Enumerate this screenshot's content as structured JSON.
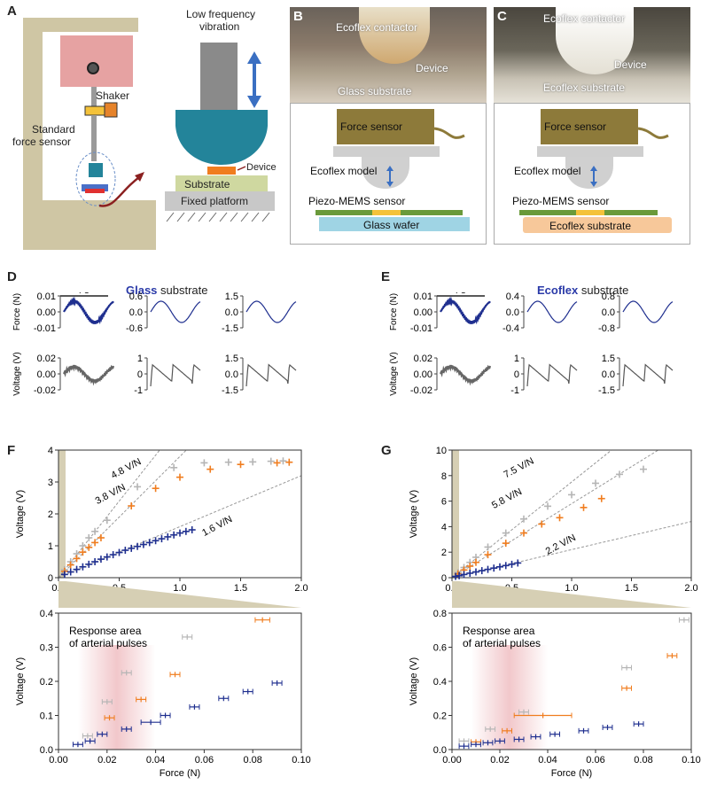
{
  "panel_labels": {
    "a": "A",
    "b": "B",
    "c": "C",
    "d": "D",
    "e": "E",
    "f": "F",
    "g": "G"
  },
  "panel_a": {
    "shaker": "Shaker",
    "standard_force_sensor_1": "Standard",
    "standard_force_sensor_2": "force sensor",
    "vibration_1": "Low frequency",
    "vibration_2": "vibration",
    "device": "Device",
    "substrate": "Substrate",
    "fixed_platform": "Fixed platform"
  },
  "panel_b": {
    "contactor": "Ecoflex contactor",
    "device": "Device",
    "substrate": "Glass substrate",
    "force_sensor": "Force sensor",
    "model": "Ecoflex model",
    "sensor": "Piezo-MEMS  sensor",
    "base": "Glass wafer"
  },
  "panel_c": {
    "contactor": "Ecoflex contactor",
    "device": "Device",
    "substrate": "Ecoflex substrate",
    "force_sensor": "Force sensor",
    "model": "Ecoflex model",
    "sensor": "Piezo-MEMS  sensor",
    "base": "Ecoflex substrate"
  },
  "panel_d": {
    "title_bold": "Glass",
    "title_rest": " substrate",
    "scale": "4 s",
    "force_label": "Force (N)",
    "voltage_label": "Voltage (V)",
    "force_ticks": [
      [
        "0.01",
        "0.00",
        "-0.01"
      ],
      [
        "0.6",
        "0.0",
        "-0.6"
      ],
      [
        "1.5",
        "0.0",
        "-1.5"
      ]
    ],
    "voltage_ticks": [
      [
        "0.02",
        "0.00",
        "-0.02"
      ],
      [
        "1",
        "0",
        "-1"
      ],
      [
        "1.5",
        "0.0",
        "-1.5"
      ]
    ]
  },
  "panel_e": {
    "title_bold": "Ecoflex",
    "title_rest": " substrate",
    "scale": "4 s",
    "force_label": "Force (N)",
    "voltage_label": "Voltage (V)",
    "force_ticks": [
      [
        "0.01",
        "0.00",
        "-0.01"
      ],
      [
        "0.4",
        "0.0",
        "-0.4"
      ],
      [
        "0.8",
        "0.0",
        "-0.8"
      ]
    ],
    "voltage_ticks": [
      [
        "0.02",
        "0.00",
        "-0.02"
      ],
      [
        "1",
        "0",
        "-1"
      ],
      [
        "1.5",
        "0.0",
        "-1.5"
      ]
    ]
  },
  "colors": {
    "navy": "#1f2f8f",
    "orange": "#f07d1f",
    "gray": "#b5b5b5",
    "tan": "#cfc6a4",
    "olive": "#7a6a2a",
    "teal": "#23849a",
    "pink": "#e79aa0"
  },
  "chart_data": [
    {
      "id": "F-top",
      "type": "scatter",
      "xlabel": "",
      "ylabel": "Voltage (V)",
      "xlim": [
        0,
        2.0
      ],
      "ylim": [
        0,
        4
      ],
      "xticks": [
        "0.0",
        "0.5",
        "1.0",
        "1.5",
        "2.0"
      ],
      "yticks": [
        "0",
        "1",
        "2",
        "3",
        "4"
      ],
      "slope_labels": [
        "4.8 V/N",
        "3.8 V/N",
        "1.6 V/N"
      ],
      "series": [
        {
          "color": "gray",
          "x": [
            0.05,
            0.1,
            0.15,
            0.2,
            0.25,
            0.3,
            0.4,
            0.65,
            0.95,
            1.2,
            1.4,
            1.6,
            1.75,
            1.85
          ],
          "y": [
            0.25,
            0.5,
            0.75,
            1.0,
            1.25,
            1.45,
            1.8,
            2.85,
            3.45,
            3.6,
            3.62,
            3.63,
            3.65,
            3.66
          ]
        },
        {
          "color": "orange",
          "x": [
            0.05,
            0.1,
            0.15,
            0.2,
            0.25,
            0.3,
            0.35,
            0.6,
            0.8,
            1.0,
            1.25,
            1.5,
            1.8,
            1.9
          ],
          "y": [
            0.2,
            0.4,
            0.6,
            0.8,
            0.95,
            1.1,
            1.25,
            2.25,
            2.8,
            3.15,
            3.4,
            3.55,
            3.6,
            3.62
          ]
        },
        {
          "color": "navy",
          "x": [
            0.05,
            0.1,
            0.15,
            0.2,
            0.25,
            0.3,
            0.35,
            0.4,
            0.45,
            0.5,
            0.55,
            0.6,
            0.65,
            0.7,
            0.75,
            0.8,
            0.85,
            0.9,
            0.95,
            1.0,
            1.05,
            1.1
          ],
          "y": [
            0.1,
            0.18,
            0.26,
            0.34,
            0.42,
            0.5,
            0.58,
            0.65,
            0.72,
            0.79,
            0.86,
            0.92,
            0.98,
            1.04,
            1.1,
            1.16,
            1.22,
            1.28,
            1.34,
            1.4,
            1.45,
            1.5
          ]
        }
      ]
    },
    {
      "id": "F-bottom",
      "type": "scatter",
      "xlabel": "Force (N)",
      "ylabel": "Voltage (V)",
      "xlim": [
        0,
        0.1
      ],
      "ylim": [
        0,
        0.4
      ],
      "xticks": [
        "0.00",
        "0.02",
        "0.04",
        "0.06",
        "0.08",
        "0.10"
      ],
      "yticks": [
        "0.0",
        "0.1",
        "0.2",
        "0.3",
        "0.4"
      ],
      "annotation": [
        "Response area",
        "of arterial pulses"
      ],
      "series": [
        {
          "color": "gray",
          "x": [
            0.012,
            0.02,
            0.028,
            0.053
          ],
          "y": [
            0.04,
            0.14,
            0.225,
            0.33
          ],
          "xerr": [
            0.002,
            0.002,
            0.002,
            0.002
          ]
        },
        {
          "color": "orange",
          "x": [
            0.021,
            0.034,
            0.048,
            0.084
          ],
          "y": [
            0.093,
            0.147,
            0.22,
            0.38
          ],
          "xerr": [
            0.002,
            0.002,
            0.002,
            0.003
          ]
        },
        {
          "color": "navy",
          "x": [
            0.008,
            0.013,
            0.018,
            0.028,
            0.038,
            0.044,
            0.056,
            0.068,
            0.078,
            0.09
          ],
          "y": [
            0.015,
            0.025,
            0.045,
            0.06,
            0.08,
            0.1,
            0.125,
            0.15,
            0.17,
            0.195
          ],
          "xerr": [
            0.002,
            0.002,
            0.002,
            0.002,
            0.004,
            0.002,
            0.002,
            0.002,
            0.002,
            0.002
          ]
        }
      ]
    },
    {
      "id": "G-top",
      "type": "scatter",
      "xlabel": "",
      "ylabel": "Voltage (V)",
      "xlim": [
        0,
        2.0
      ],
      "ylim": [
        0,
        10
      ],
      "xticks": [
        "0.0",
        "0.5",
        "1.0",
        "1.5",
        "2.0"
      ],
      "yticks": [
        "0",
        "2",
        "4",
        "6",
        "8",
        "10"
      ],
      "slope_labels": [
        "7.5 V/N",
        "5.8 V/N",
        "2.2 V/N"
      ],
      "series": [
        {
          "color": "gray",
          "x": [
            0.05,
            0.1,
            0.15,
            0.2,
            0.3,
            0.45,
            0.6,
            0.8,
            1.0,
            1.2,
            1.4,
            1.6
          ],
          "y": [
            0.4,
            0.8,
            1.2,
            1.6,
            2.4,
            3.5,
            4.6,
            5.6,
            6.5,
            7.4,
            8.1,
            8.5
          ]
        },
        {
          "color": "orange",
          "x": [
            0.05,
            0.1,
            0.15,
            0.2,
            0.3,
            0.45,
            0.6,
            0.75,
            0.9,
            1.1,
            1.25
          ],
          "y": [
            0.3,
            0.6,
            0.9,
            1.2,
            1.8,
            2.7,
            3.5,
            4.2,
            4.7,
            5.5,
            6.2
          ]
        },
        {
          "color": "navy",
          "x": [
            0.03,
            0.06,
            0.1,
            0.15,
            0.2,
            0.25,
            0.3,
            0.35,
            0.4,
            0.45,
            0.5,
            0.55
          ],
          "y": [
            0.1,
            0.15,
            0.25,
            0.35,
            0.45,
            0.55,
            0.65,
            0.75,
            0.85,
            0.95,
            1.05,
            1.15
          ]
        }
      ]
    },
    {
      "id": "G-bottom",
      "type": "scatter",
      "xlabel": "Force (N)",
      "ylabel": "Voltage (V)",
      "xlim": [
        0,
        0.1
      ],
      "ylim": [
        0,
        0.8
      ],
      "xticks": [
        "0.00",
        "0.02",
        "0.04",
        "0.06",
        "0.08",
        "0.10"
      ],
      "yticks": [
        "0.0",
        "0.2",
        "0.4",
        "0.6",
        "0.8"
      ],
      "annotation": [
        "Response area",
        "of arterial pulses"
      ],
      "series": [
        {
          "color": "gray",
          "x": [
            0.005,
            0.016,
            0.03,
            0.073,
            0.097
          ],
          "y": [
            0.05,
            0.12,
            0.22,
            0.48,
            0.76
          ],
          "xerr": [
            0.002,
            0.002,
            0.002,
            0.002,
            0.002
          ]
        },
        {
          "color": "orange",
          "x": [
            0.01,
            0.023,
            0.038,
            0.073,
            0.092
          ],
          "y": [
            0.045,
            0.11,
            0.2,
            0.36,
            0.55
          ],
          "xerr": [
            0.002,
            0.002,
            0.012,
            0.002,
            0.002
          ]
        },
        {
          "color": "navy",
          "x": [
            0.005,
            0.01,
            0.015,
            0.02,
            0.028,
            0.035,
            0.043,
            0.055,
            0.065,
            0.078
          ],
          "y": [
            0.02,
            0.03,
            0.04,
            0.05,
            0.06,
            0.075,
            0.09,
            0.11,
            0.13,
            0.15
          ],
          "xerr": [
            0.002,
            0.002,
            0.002,
            0.002,
            0.002,
            0.002,
            0.002,
            0.002,
            0.002,
            0.002
          ]
        }
      ]
    }
  ]
}
